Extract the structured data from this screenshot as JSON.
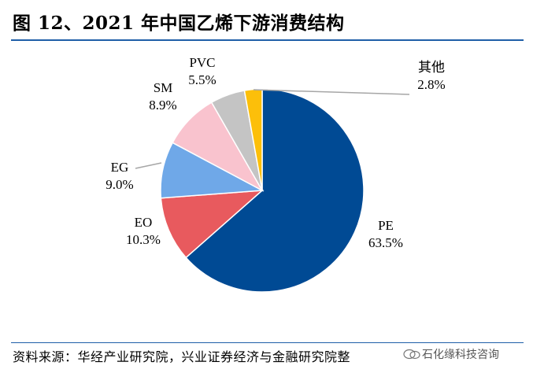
{
  "title": "图 12、2021 年中国乙烯下游消费结构",
  "source": "资料来源：华经产业研究院，兴业证券经济与金融研究院整",
  "watermark": "石化缘科技咨询",
  "chart_data": {
    "type": "pie",
    "title": "",
    "slices": [
      {
        "label": "PE",
        "value": 63.5,
        "display": "63.5%",
        "color": "#004a94"
      },
      {
        "label": "EO",
        "value": 10.3,
        "display": "10.3%",
        "color": "#e85a5e"
      },
      {
        "label": "EG",
        "value": 9.0,
        "display": "9.0%",
        "color": "#6fa8e8"
      },
      {
        "label": "SM",
        "value": 8.9,
        "display": "8.9%",
        "color": "#f9c3ce"
      },
      {
        "label": "PVC",
        "value": 5.5,
        "display": "5.5%",
        "color": "#c4c4c4"
      },
      {
        "label": "其他",
        "value": 2.8,
        "display": "2.8%",
        "color": "#fcbf0a"
      }
    ]
  }
}
